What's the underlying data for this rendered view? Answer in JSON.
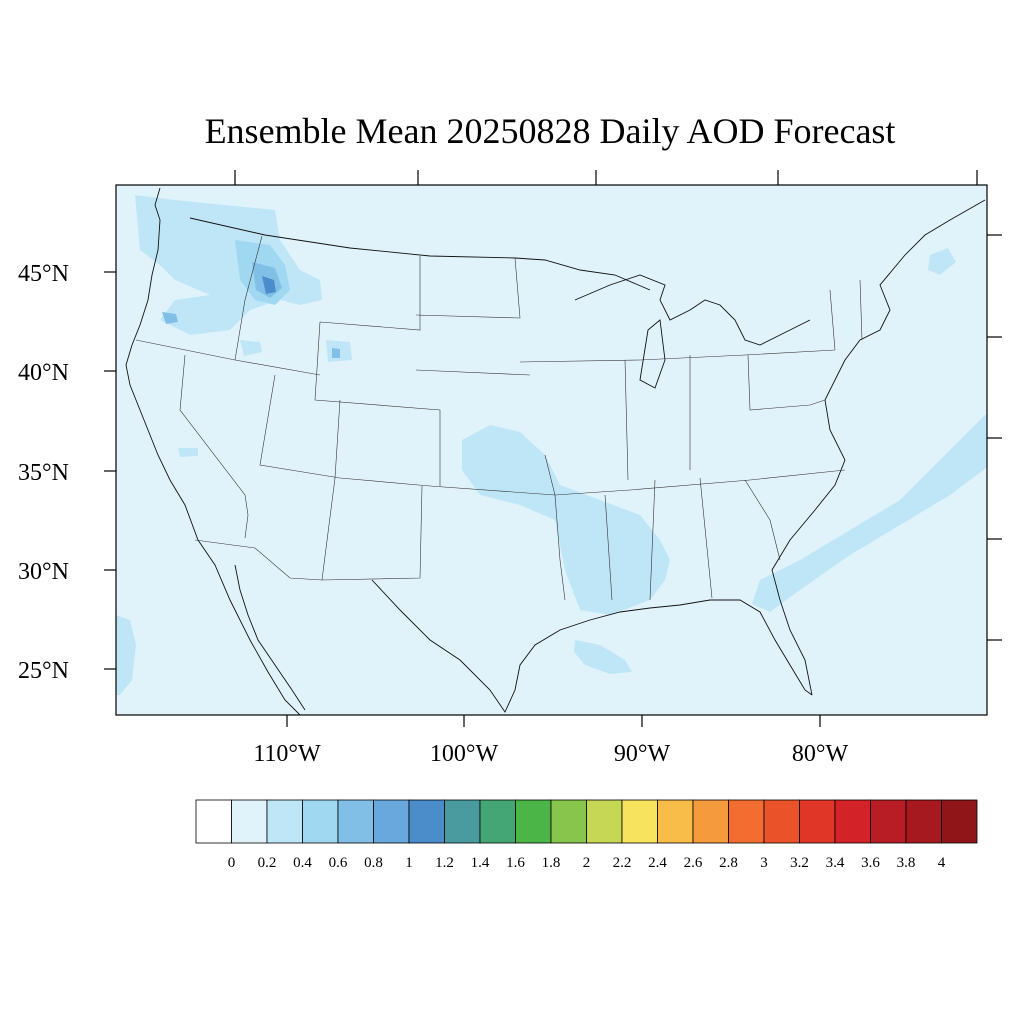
{
  "title": "Ensemble Mean 20250828 Daily AOD Forecast",
  "lat_labels": [
    "45°N",
    "40°N",
    "35°N",
    "30°N",
    "25°N"
  ],
  "lon_labels": [
    "110°W",
    "100°W",
    "90°W",
    "80°W"
  ],
  "colorbar": {
    "labels": [
      "0",
      "0.2",
      "0.4",
      "0.6",
      "0.8",
      "1",
      "1.2",
      "1.4",
      "1.6",
      "1.8",
      "2",
      "2.2",
      "2.4",
      "2.6",
      "2.8",
      "3",
      "3.2",
      "3.4",
      "3.6",
      "3.8",
      "4"
    ],
    "colors": [
      "#ffffff",
      "#e0f3fb",
      "#bfe6f7",
      "#a0d8f2",
      "#82bfe6",
      "#68a8dc",
      "#4a8dca",
      "#4a9ba0",
      "#45a675",
      "#4bb547",
      "#88c54c",
      "#c6d755",
      "#f8e35e",
      "#f8bd48",
      "#f59a3d",
      "#f26d2f",
      "#ea5229",
      "#e03628",
      "#d42328",
      "#b81c24",
      "#a5191f",
      "#8f1519"
    ]
  },
  "colors": {
    "background_aod": "#e0f3fb",
    "level_04": "#bfe6f7",
    "level_06": "#a0d8f2",
    "level_08": "#82bfe6",
    "level_1": "#4a8dca"
  }
}
